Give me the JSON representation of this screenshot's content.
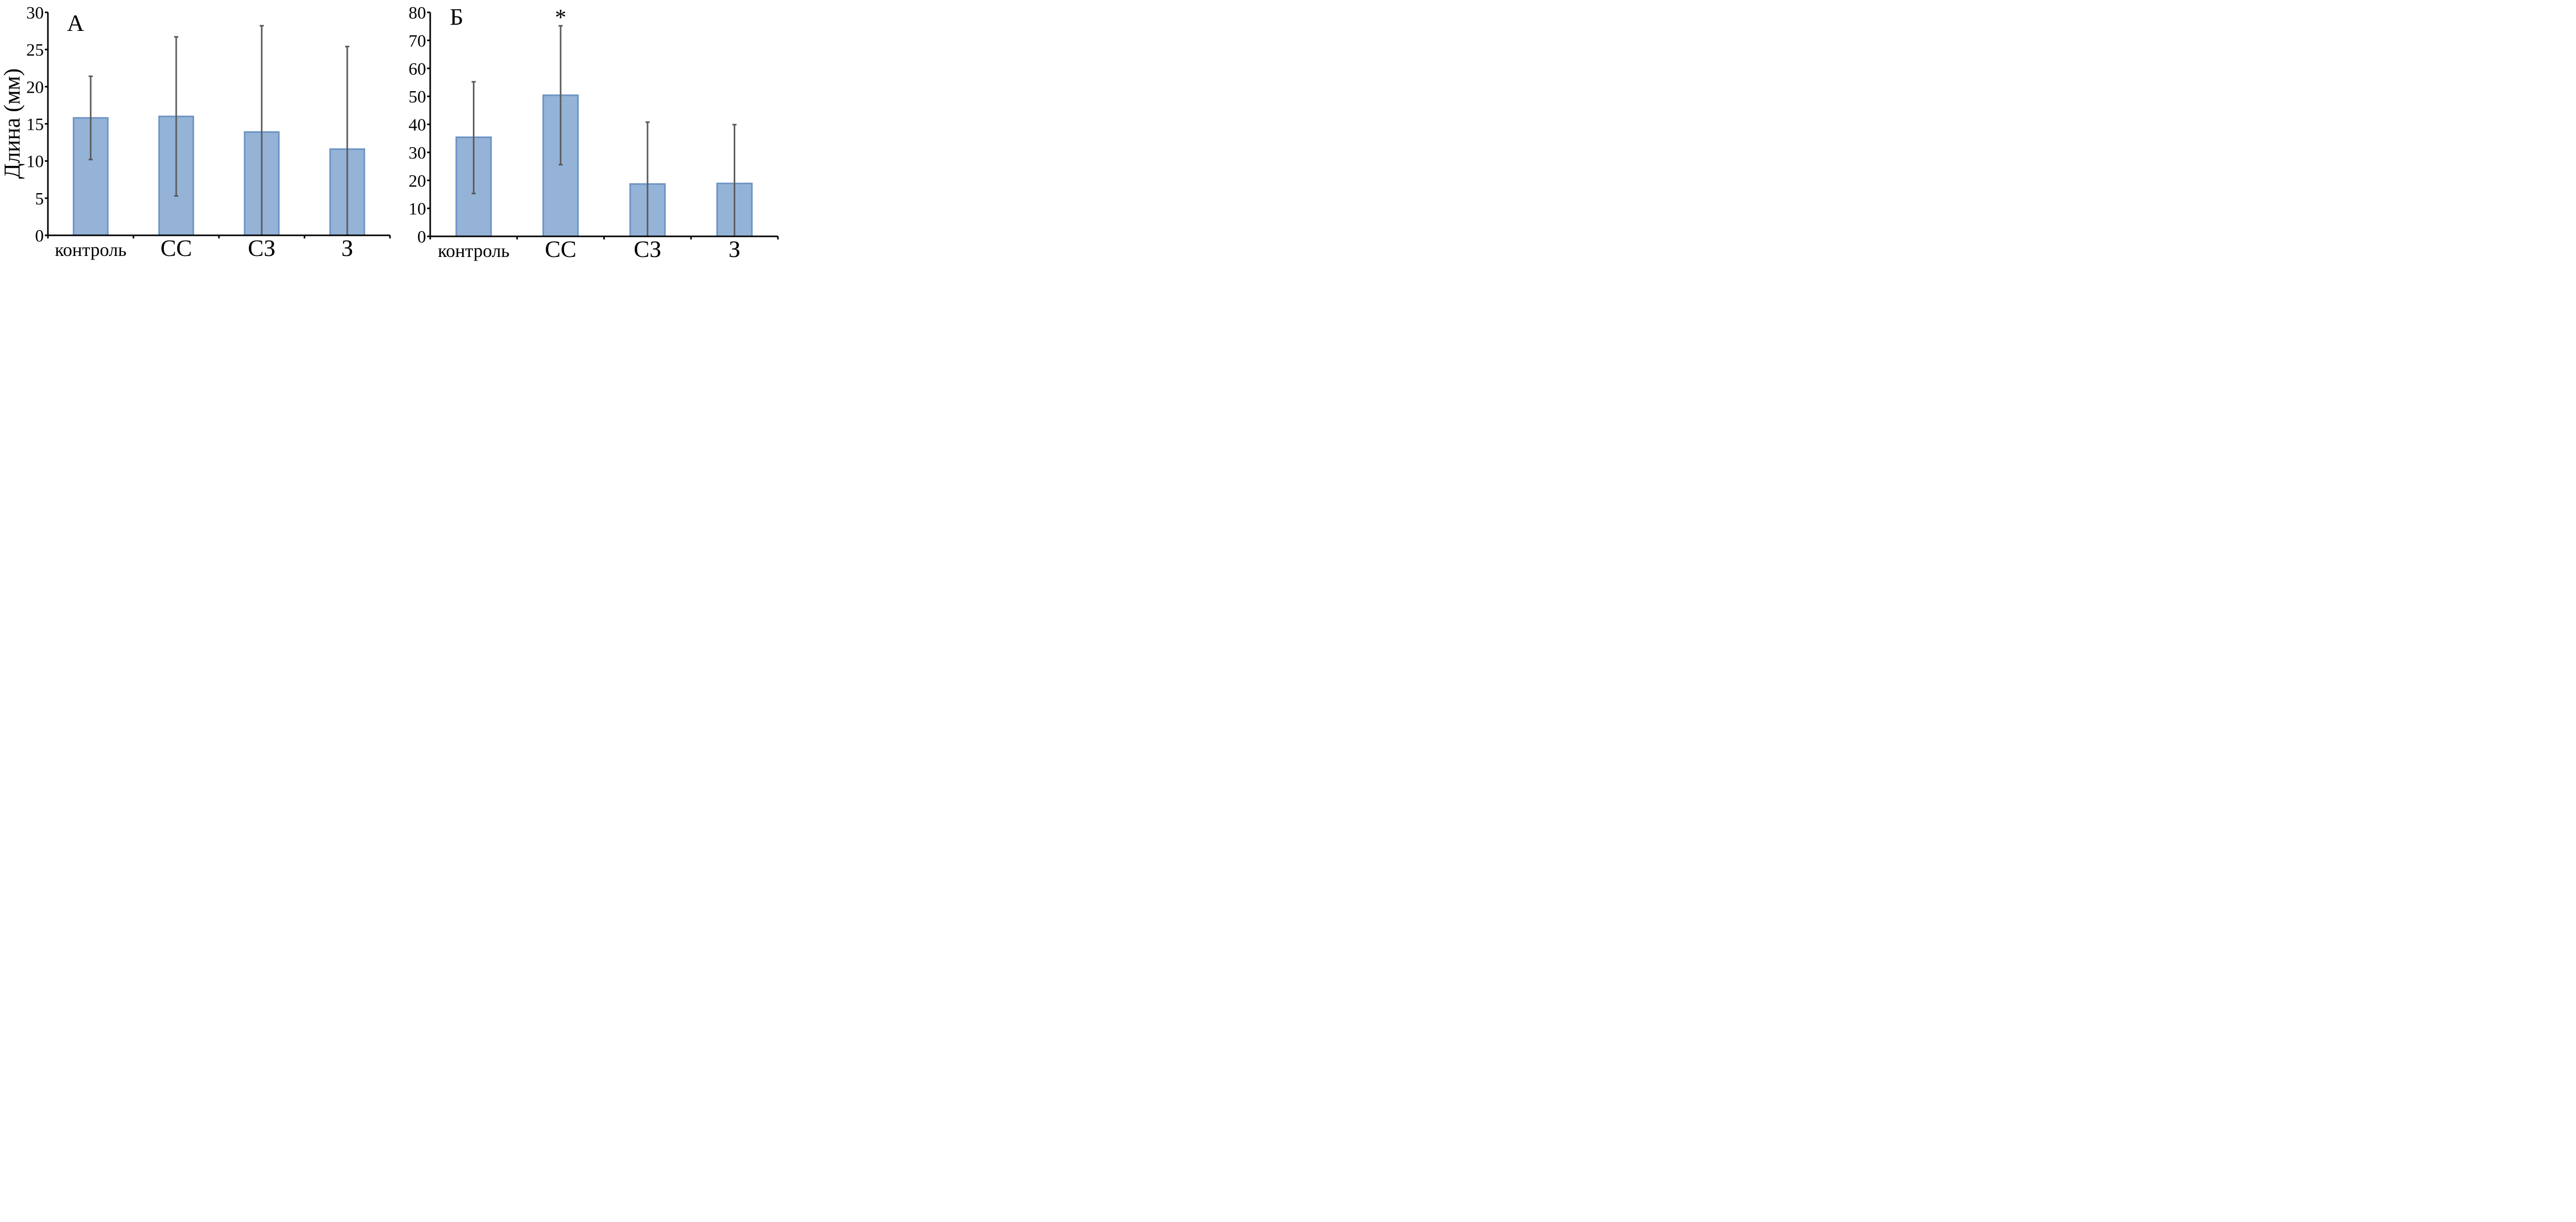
{
  "chart_data": [
    {
      "type": "bar",
      "panel_label": "А",
      "title": "",
      "xlabel": "",
      "ylabel": "Длина (мм)",
      "ylim": [
        0,
        30
      ],
      "yticks": [
        0,
        5,
        10,
        15,
        20,
        25,
        30
      ],
      "grid": false,
      "categories": [
        "контроль",
        "СС",
        "СЗ",
        "З"
      ],
      "values": [
        15.8,
        16.0,
        13.9,
        11.6
      ],
      "error_upper": [
        21.4,
        26.7,
        28.2,
        25.4
      ],
      "error_lower": [
        10.2,
        5.3,
        0,
        0
      ],
      "annotations": []
    },
    {
      "type": "bar",
      "panel_label": "Б",
      "title": "",
      "xlabel": "",
      "ylabel": "",
      "ylim": [
        0,
        80
      ],
      "yticks": [
        0,
        10,
        20,
        30,
        40,
        50,
        60,
        70,
        80
      ],
      "grid": false,
      "categories": [
        "контроль",
        "СС",
        "СЗ",
        "З"
      ],
      "values": [
        35.4,
        50.4,
        18.7,
        18.9
      ],
      "error_upper": [
        55.2,
        75.2,
        40.8,
        39.9
      ],
      "error_lower": [
        15.3,
        25.6,
        0,
        0
      ],
      "annotations": [
        {
          "category": "СС",
          "text": "*"
        }
      ]
    }
  ],
  "colors": {
    "bar_fill": "#95b3d7",
    "bar_border": "#6c93c3",
    "error_bar": "#595959",
    "axis": "#000000"
  }
}
